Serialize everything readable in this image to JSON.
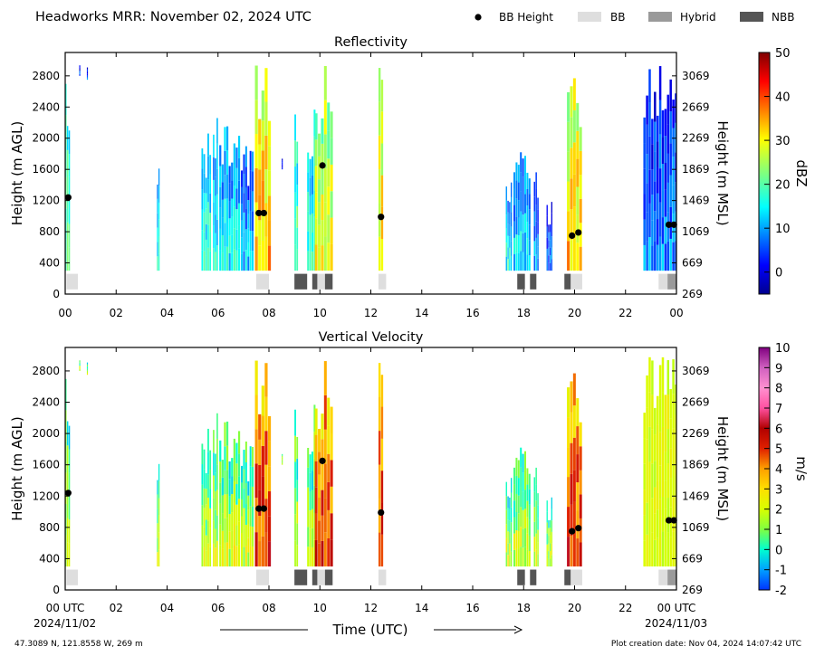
{
  "header": {
    "title": "Headworks MRR:  November 02, 2024 UTC",
    "legend": [
      {
        "label": "BB Height",
        "kind": "dot",
        "color": "#000000"
      },
      {
        "label": "BB",
        "kind": "bar",
        "color": "#dedede"
      },
      {
        "label": "Hybrid",
        "kind": "bar",
        "color": "#9a9a9a"
      },
      {
        "label": "NBB",
        "kind": "bar",
        "color": "#555555"
      }
    ]
  },
  "footer": {
    "coords": "47.3089 N, 121.8558 W, 269 m",
    "created": "Plot creation date: Nov 04, 2024 14:07:42 UTC",
    "xlabel": "Time (UTC)",
    "start_date": "2024/11/02",
    "end_date": "2024/11/03"
  },
  "chart_data": [
    {
      "type": "heatmap",
      "title": "Reflectivity",
      "xlabel": "Time (UTC)",
      "ylabel": "Height (m AGL)",
      "ylabel_right": "Height (m MSL)",
      "xlim": [
        0,
        24
      ],
      "ylim": [
        0,
        3100
      ],
      "x_ticks": [
        "00",
        "02",
        "04",
        "06",
        "08",
        "10",
        "12",
        "14",
        "16",
        "18",
        "20",
        "22",
        "00"
      ],
      "x_ticks_first": "00",
      "x_ticks_last": "00",
      "y_ticks": [
        0,
        400,
        800,
        1200,
        1600,
        2000,
        2400,
        2800
      ],
      "y_ticks_right": [
        {
          "v": 0,
          "label": "269"
        },
        {
          "v": 400,
          "label": "669"
        },
        {
          "v": 800,
          "label": "1069"
        },
        {
          "v": 1200,
          "label": "1469"
        },
        {
          "v": 1600,
          "label": "1869"
        },
        {
          "v": 2000,
          "label": "2269"
        },
        {
          "v": 2400,
          "label": "2669"
        },
        {
          "v": 2800,
          "label": "3069"
        }
      ],
      "colorbar": {
        "label": "dBZ",
        "range": [
          -5,
          50
        ],
        "ticks": [
          0,
          10,
          20,
          30,
          40,
          50
        ],
        "scheme": "jet"
      },
      "bb_height": [
        {
          "t": 0.12,
          "h": 1240
        },
        {
          "t": 7.6,
          "h": 1040
        },
        {
          "t": 7.8,
          "h": 1040
        },
        {
          "t": 10.1,
          "h": 1650
        },
        {
          "t": 12.4,
          "h": 990
        },
        {
          "t": 19.9,
          "h": 750
        },
        {
          "t": 20.15,
          "h": 790
        },
        {
          "t": 23.7,
          "h": 890
        },
        {
          "t": 23.9,
          "h": 890
        }
      ],
      "classification": [
        {
          "start": 0.05,
          "end": 0.5,
          "type": "BB"
        },
        {
          "start": 7.5,
          "end": 8.0,
          "type": "BB"
        },
        {
          "start": 9.0,
          "end": 9.5,
          "type": "NBB"
        },
        {
          "start": 9.7,
          "end": 9.9,
          "type": "NBB"
        },
        {
          "start": 9.9,
          "end": 10.2,
          "type": "BB"
        },
        {
          "start": 10.2,
          "end": 10.5,
          "type": "NBB"
        },
        {
          "start": 12.3,
          "end": 12.6,
          "type": "BB"
        },
        {
          "start": 17.75,
          "end": 18.05,
          "type": "NBB"
        },
        {
          "start": 18.25,
          "end": 18.5,
          "type": "NBB"
        },
        {
          "start": 19.6,
          "end": 19.85,
          "type": "NBB"
        },
        {
          "start": 19.85,
          "end": 20.3,
          "type": "BB"
        },
        {
          "start": 23.3,
          "end": 23.65,
          "type": "BB"
        },
        {
          "start": 23.65,
          "end": 24.0,
          "type": "Hybrid"
        }
      ]
    },
    {
      "type": "heatmap",
      "title": "Vertical Velocity",
      "xlabel": "Time (UTC)",
      "ylabel": "Height (m AGL)",
      "ylabel_right": "Height (m MSL)",
      "xlim": [
        0,
        24
      ],
      "ylim": [
        0,
        3100
      ],
      "x_ticks": [
        "00 UTC",
        "02",
        "04",
        "06",
        "08",
        "10",
        "12",
        "14",
        "16",
        "18",
        "20",
        "22",
        "00 UTC"
      ],
      "x_ticks_first": "00 UTC",
      "x_ticks_last": "00 UTC",
      "y_ticks": [
        0,
        400,
        800,
        1200,
        1600,
        2000,
        2400,
        2800
      ],
      "y_ticks_right": [
        {
          "v": 0,
          "label": "269"
        },
        {
          "v": 400,
          "label": "669"
        },
        {
          "v": 800,
          "label": "1069"
        },
        {
          "v": 1200,
          "label": "1469"
        },
        {
          "v": 1600,
          "label": "1869"
        },
        {
          "v": 2000,
          "label": "2269"
        },
        {
          "v": 2400,
          "label": "2669"
        },
        {
          "v": 2800,
          "label": "3069"
        }
      ],
      "colorbar": {
        "label": "m/s",
        "range": [
          -2,
          10
        ],
        "ticks": [
          -2,
          -1,
          0,
          1,
          2,
          3,
          4,
          5,
          6,
          7,
          8,
          9,
          10
        ],
        "scheme": "velocity"
      },
      "bb_height": [
        {
          "t": 0.12,
          "h": 1240
        },
        {
          "t": 7.6,
          "h": 1040
        },
        {
          "t": 7.8,
          "h": 1040
        },
        {
          "t": 10.1,
          "h": 1650
        },
        {
          "t": 12.4,
          "h": 990
        },
        {
          "t": 19.9,
          "h": 750
        },
        {
          "t": 20.15,
          "h": 790
        },
        {
          "t": 23.7,
          "h": 890
        },
        {
          "t": 23.9,
          "h": 890
        }
      ],
      "classification": [
        {
          "start": 0.05,
          "end": 0.5,
          "type": "BB"
        },
        {
          "start": 7.5,
          "end": 8.0,
          "type": "BB"
        },
        {
          "start": 9.0,
          "end": 9.5,
          "type": "NBB"
        },
        {
          "start": 9.7,
          "end": 9.9,
          "type": "NBB"
        },
        {
          "start": 9.9,
          "end": 10.2,
          "type": "BB"
        },
        {
          "start": 10.2,
          "end": 10.5,
          "type": "NBB"
        },
        {
          "start": 12.3,
          "end": 12.6,
          "type": "BB"
        },
        {
          "start": 17.75,
          "end": 18.05,
          "type": "NBB"
        },
        {
          "start": 18.25,
          "end": 18.5,
          "type": "NBB"
        },
        {
          "start": 19.6,
          "end": 19.85,
          "type": "NBB"
        },
        {
          "start": 19.85,
          "end": 20.3,
          "type": "BB"
        },
        {
          "start": 23.3,
          "end": 23.65,
          "type": "BB"
        },
        {
          "start": 23.65,
          "end": 24.0,
          "type": "Hybrid"
        }
      ]
    }
  ],
  "echo_columns": [
    {
      "t0": 0.0,
      "t1": 0.18,
      "top": 2950,
      "base": 300,
      "z": 22,
      "w": 1.5
    },
    {
      "t0": 0.55,
      "t1": 0.6,
      "top": 2950,
      "base": 2800,
      "z": 6,
      "w": 1.2
    },
    {
      "t0": 0.85,
      "t1": 0.9,
      "top": 2950,
      "base": 2750,
      "z": 8,
      "w": 1.2
    },
    {
      "t0": 3.6,
      "t1": 3.68,
      "top": 1900,
      "base": 300,
      "z": 17,
      "w": 1.3
    },
    {
      "t0": 5.35,
      "t1": 5.7,
      "top": 2100,
      "base": 300,
      "z": 18,
      "w": 1.8
    },
    {
      "t0": 5.8,
      "t1": 6.0,
      "top": 2300,
      "base": 300,
      "z": 16,
      "w": 1.6
    },
    {
      "t0": 6.05,
      "t1": 6.8,
      "top": 2200,
      "base": 300,
      "z": 15,
      "w": 2.2
    },
    {
      "t0": 6.9,
      "t1": 7.4,
      "top": 1900,
      "base": 300,
      "z": 12,
      "w": 2.0
    },
    {
      "t0": 7.45,
      "t1": 8.0,
      "top": 3000,
      "base": 300,
      "z": 34,
      "w": 3.2
    },
    {
      "t0": 8.5,
      "t1": 8.55,
      "top": 1800,
      "base": 1600,
      "z": 4,
      "w": 1.2
    },
    {
      "t0": 9.0,
      "t1": 9.15,
      "top": 2700,
      "base": 300,
      "z": 21,
      "w": 1.8
    },
    {
      "t0": 9.5,
      "t1": 9.8,
      "top": 2500,
      "base": 300,
      "z": 19,
      "w": 2.0
    },
    {
      "t0": 9.8,
      "t1": 10.5,
      "top": 3000,
      "base": 300,
      "z": 30,
      "w": 3.0
    },
    {
      "t0": 12.3,
      "t1": 12.45,
      "top": 3000,
      "base": 300,
      "z": 32,
      "w": 2.4
    },
    {
      "t0": 17.3,
      "t1": 17.5,
      "top": 1500,
      "base": 300,
      "z": 16,
      "w": 1.4
    },
    {
      "t0": 17.6,
      "t1": 18.2,
      "top": 2000,
      "base": 300,
      "z": 14,
      "w": 2.0
    },
    {
      "t0": 18.4,
      "t1": 18.6,
      "top": 1600,
      "base": 300,
      "z": 10,
      "w": 1.5
    },
    {
      "t0": 18.9,
      "t1": 19.1,
      "top": 1200,
      "base": 300,
      "z": 8,
      "w": 1.3
    },
    {
      "t0": 19.7,
      "t1": 20.3,
      "top": 3000,
      "base": 300,
      "z": 33,
      "w": 3.0
    },
    {
      "t0": 22.7,
      "t1": 24.0,
      "top": 3000,
      "base": 300,
      "z": 9,
      "w": 2.5
    }
  ]
}
